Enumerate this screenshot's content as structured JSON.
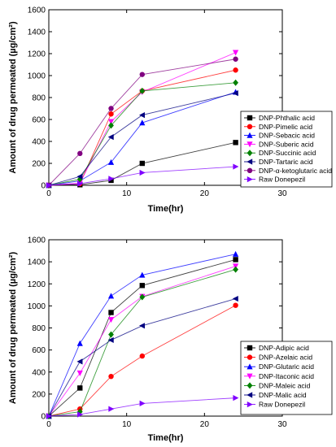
{
  "chart_data": [
    {
      "type": "line",
      "xlabel": "Time(hr)",
      "ylabel": "Amount of drug permeated (µg/cm²)",
      "xlim": [
        0,
        30
      ],
      "ylim": [
        0,
        1600
      ],
      "xticks": [
        "0",
        "10",
        "20",
        "30"
      ],
      "yticks": [
        "0",
        "200",
        "400",
        "600",
        "800",
        "1000",
        "1200",
        "1400",
        "1600"
      ],
      "x": [
        0,
        4,
        8,
        12,
        24
      ],
      "grid": false,
      "legend_position": "bottom-right",
      "series": [
        {
          "name": "DNP-Phthalic acid",
          "values": [
            0,
            5,
            45,
            200,
            390
          ],
          "color": "#000000",
          "marker": "square"
        },
        {
          "name": "DNP-Pimelic acid",
          "values": [
            0,
            15,
            650,
            860,
            1050
          ],
          "color": "#ff0000",
          "marker": "circle"
        },
        {
          "name": "DNP-Sebacic acid",
          "values": [
            0,
            40,
            210,
            570,
            850
          ],
          "color": "#0000ff",
          "marker": "triangle-up"
        },
        {
          "name": "DNP-Suberic acid",
          "values": [
            0,
            20,
            580,
            850,
            1210
          ],
          "color": "#ff00ff",
          "marker": "triangle-down"
        },
        {
          "name": "DNP-Succinic acid",
          "values": [
            0,
            55,
            545,
            860,
            935
          ],
          "color": "#008000",
          "marker": "diamond"
        },
        {
          "name": "DNP-Tartaric acid",
          "values": [
            0,
            80,
            440,
            640,
            840
          ],
          "color": "#000080",
          "marker": "triangle-left"
        },
        {
          "name": "DNP-α-ketoglutaric acid",
          "values": [
            0,
            290,
            700,
            1010,
            1150
          ],
          "color": "#800080",
          "marker": "circle"
        },
        {
          "name": "Raw Donepezil",
          "values": [
            0,
            15,
            60,
            115,
            170
          ],
          "color": "#8000ff",
          "marker": "triangle-right"
        }
      ]
    },
    {
      "type": "line",
      "xlabel": "Time(hr)",
      "ylabel": "Amount of drug permeated (µg/cm²)",
      "xlim": [
        0,
        30
      ],
      "ylim": [
        0,
        1600
      ],
      "xticks": [
        "0",
        "10",
        "20",
        "30"
      ],
      "yticks": [
        "0",
        "200",
        "400",
        "600",
        "800",
        "1000",
        "1200",
        "1400",
        "1600"
      ],
      "x": [
        0,
        4,
        8,
        12,
        24
      ],
      "grid": false,
      "legend_position": "bottom-right",
      "series": [
        {
          "name": "DNP-Adipic acid",
          "values": [
            0,
            255,
            940,
            1185,
            1420
          ],
          "color": "#000000",
          "marker": "square"
        },
        {
          "name": "DNP-Azelaic acid",
          "values": [
            0,
            65,
            360,
            545,
            1005
          ],
          "color": "#ff0000",
          "marker": "circle"
        },
        {
          "name": "DNP-Glutaric acid",
          "values": [
            0,
            660,
            1090,
            1280,
            1470
          ],
          "color": "#0000ff",
          "marker": "triangle-up"
        },
        {
          "name": "DNP-Itaconic acid",
          "values": [
            0,
            390,
            875,
            1085,
            1360
          ],
          "color": "#ff00ff",
          "marker": "triangle-down"
        },
        {
          "name": "DNP-Maleic acid",
          "values": [
            0,
            40,
            740,
            1080,
            1330
          ],
          "color": "#008000",
          "marker": "diamond"
        },
        {
          "name": "DNP-Malic acid",
          "values": [
            0,
            495,
            690,
            820,
            1065
          ],
          "color": "#000080",
          "marker": "triangle-left"
        },
        {
          "name": "Raw Donepezil",
          "values": [
            0,
            15,
            65,
            115,
            165
          ],
          "color": "#8000ff",
          "marker": "triangle-right"
        }
      ]
    }
  ]
}
